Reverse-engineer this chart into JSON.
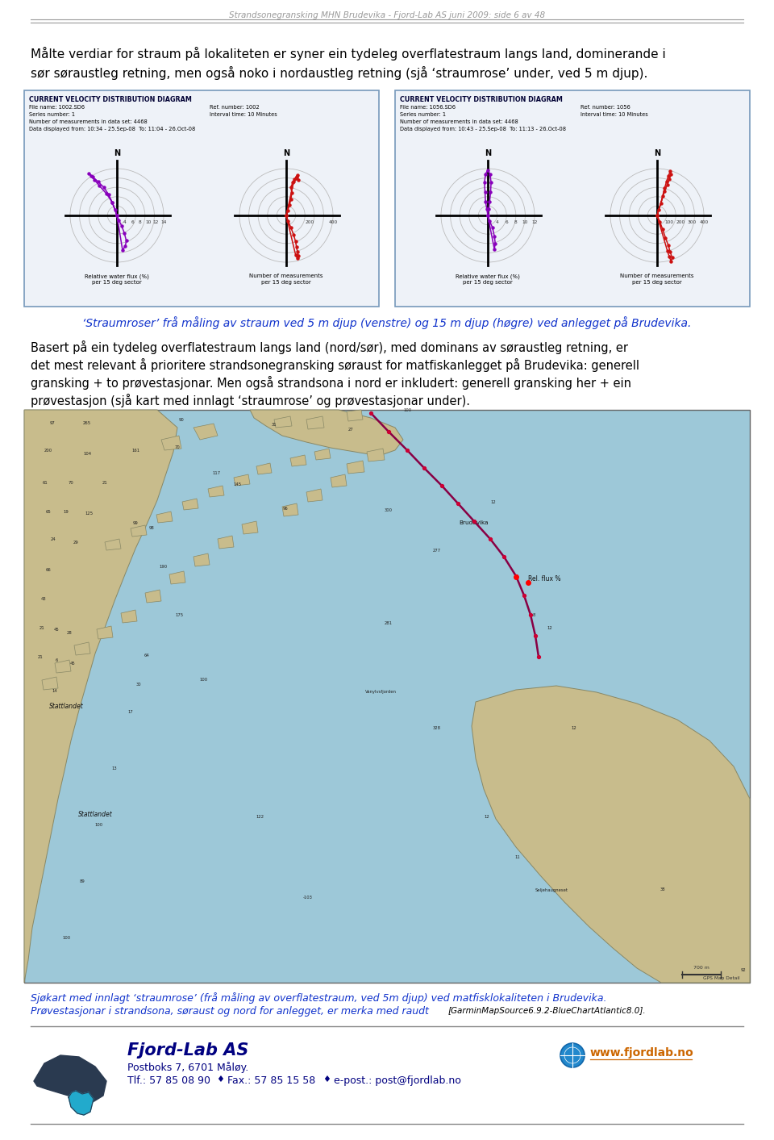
{
  "page_header": "Strandsonegransking MHN Brudevika - Fjord-Lab AS juni 2009: side 6 av 48",
  "intro_text_line1": "Målte verdiar for straum på lokaliteten er syner ein tydeleg overflatestraum langs land, dominerande i",
  "intro_text_line2": "sør søraustleg retning, men også noko i nordaustleg retning (sjå ‘straumrose’ under, ved 5 m djup).",
  "diagram_box1_title": "CURRENT VELOCITY DISTRIBUTION DIAGRAM",
  "diagram_box1_file": "File name: 1002.SD6",
  "diagram_box1_ref": "Ref. number: 1002",
  "diagram_box1_series": "Series number: 1",
  "diagram_box1_interval": "Interval time: 10 Minutes",
  "diagram_box1_nmeas": "Number of measurements in data set: 4468",
  "diagram_box1_data": "Data displayed from: 10:34 - 25.Sep-08  To: 11:04 - 26.Oct-08",
  "diagram_box2_title": "CURRENT VELOCITY DISTRIBUTION DIAGRAM",
  "diagram_box2_file": "File name: 1056.SD6",
  "diagram_box2_ref": "Ref. number: 1056",
  "diagram_box2_series": "Series number: 1",
  "diagram_box2_interval": "Interval time: 10 Minutes",
  "diagram_box2_nmeas": "Number of measurements in data set: 4468",
  "diagram_box2_data": "Data displayed from: 10:43 - 25.Sep-08  To: 11:13 - 26.Oct-08",
  "caption_italic": "‘Straumroser’ frå måling av straum ved 5 m djup (venstre) og 15 m djup (høgre) ved anlegget på Brudevika.",
  "body_lines": [
    "Basert på ein tydeleg overflatestraum langs land (nord/sør), med dominans av søraustleg retning, er",
    "det mest relevant å prioritere strandsonegransking søraust for matfiskanlegget på Brudevika: generell",
    "gransking + to prøvestasjonar. Men også strandsona i nord er inkludert: generell gransking her + ein",
    "prøvestasjon (sjå kart med innlagt ‘straumrose’ og prøvestasjonar under)."
  ],
  "map_caption_line1": "Sjøkart med innlagt ‘straumrose’ (frå måling av overflatestraum, ved 5m djup) ved matfisklokaliteten i Brudevika.",
  "map_caption_line2a": "Prøvestasjonar i strandsona, søraust og nord for anlegget, er merka med raudt ",
  "map_caption_line2b": "[GarminMapSource6.9.2-BlueChartAtlantic8.0].",
  "footer_company": "Fjord-Lab AS",
  "footer_address": "Postboks 7, 6701 Måløy.",
  "footer_phone": "Tlf.: 57 85 08 90",
  "footer_fax": "Fax.: 57 85 15 58",
  "footer_email": "e-post.: post@fjordlab.no",
  "footer_web": "www.fjordlab.no",
  "bg_color": "#ffffff",
  "header_color": "#999999",
  "box_border_color": "#7799bb",
  "box_bg_color": "#eef2f8",
  "caption_color": "#1133cc",
  "body_text_color": "#000000",
  "map_caption_italic_color": "#1133cc",
  "map_caption_normal_color": "#000000",
  "footer_company_color": "#000080",
  "footer_text_color": "#000080",
  "footer_web_color": "#cc6600"
}
